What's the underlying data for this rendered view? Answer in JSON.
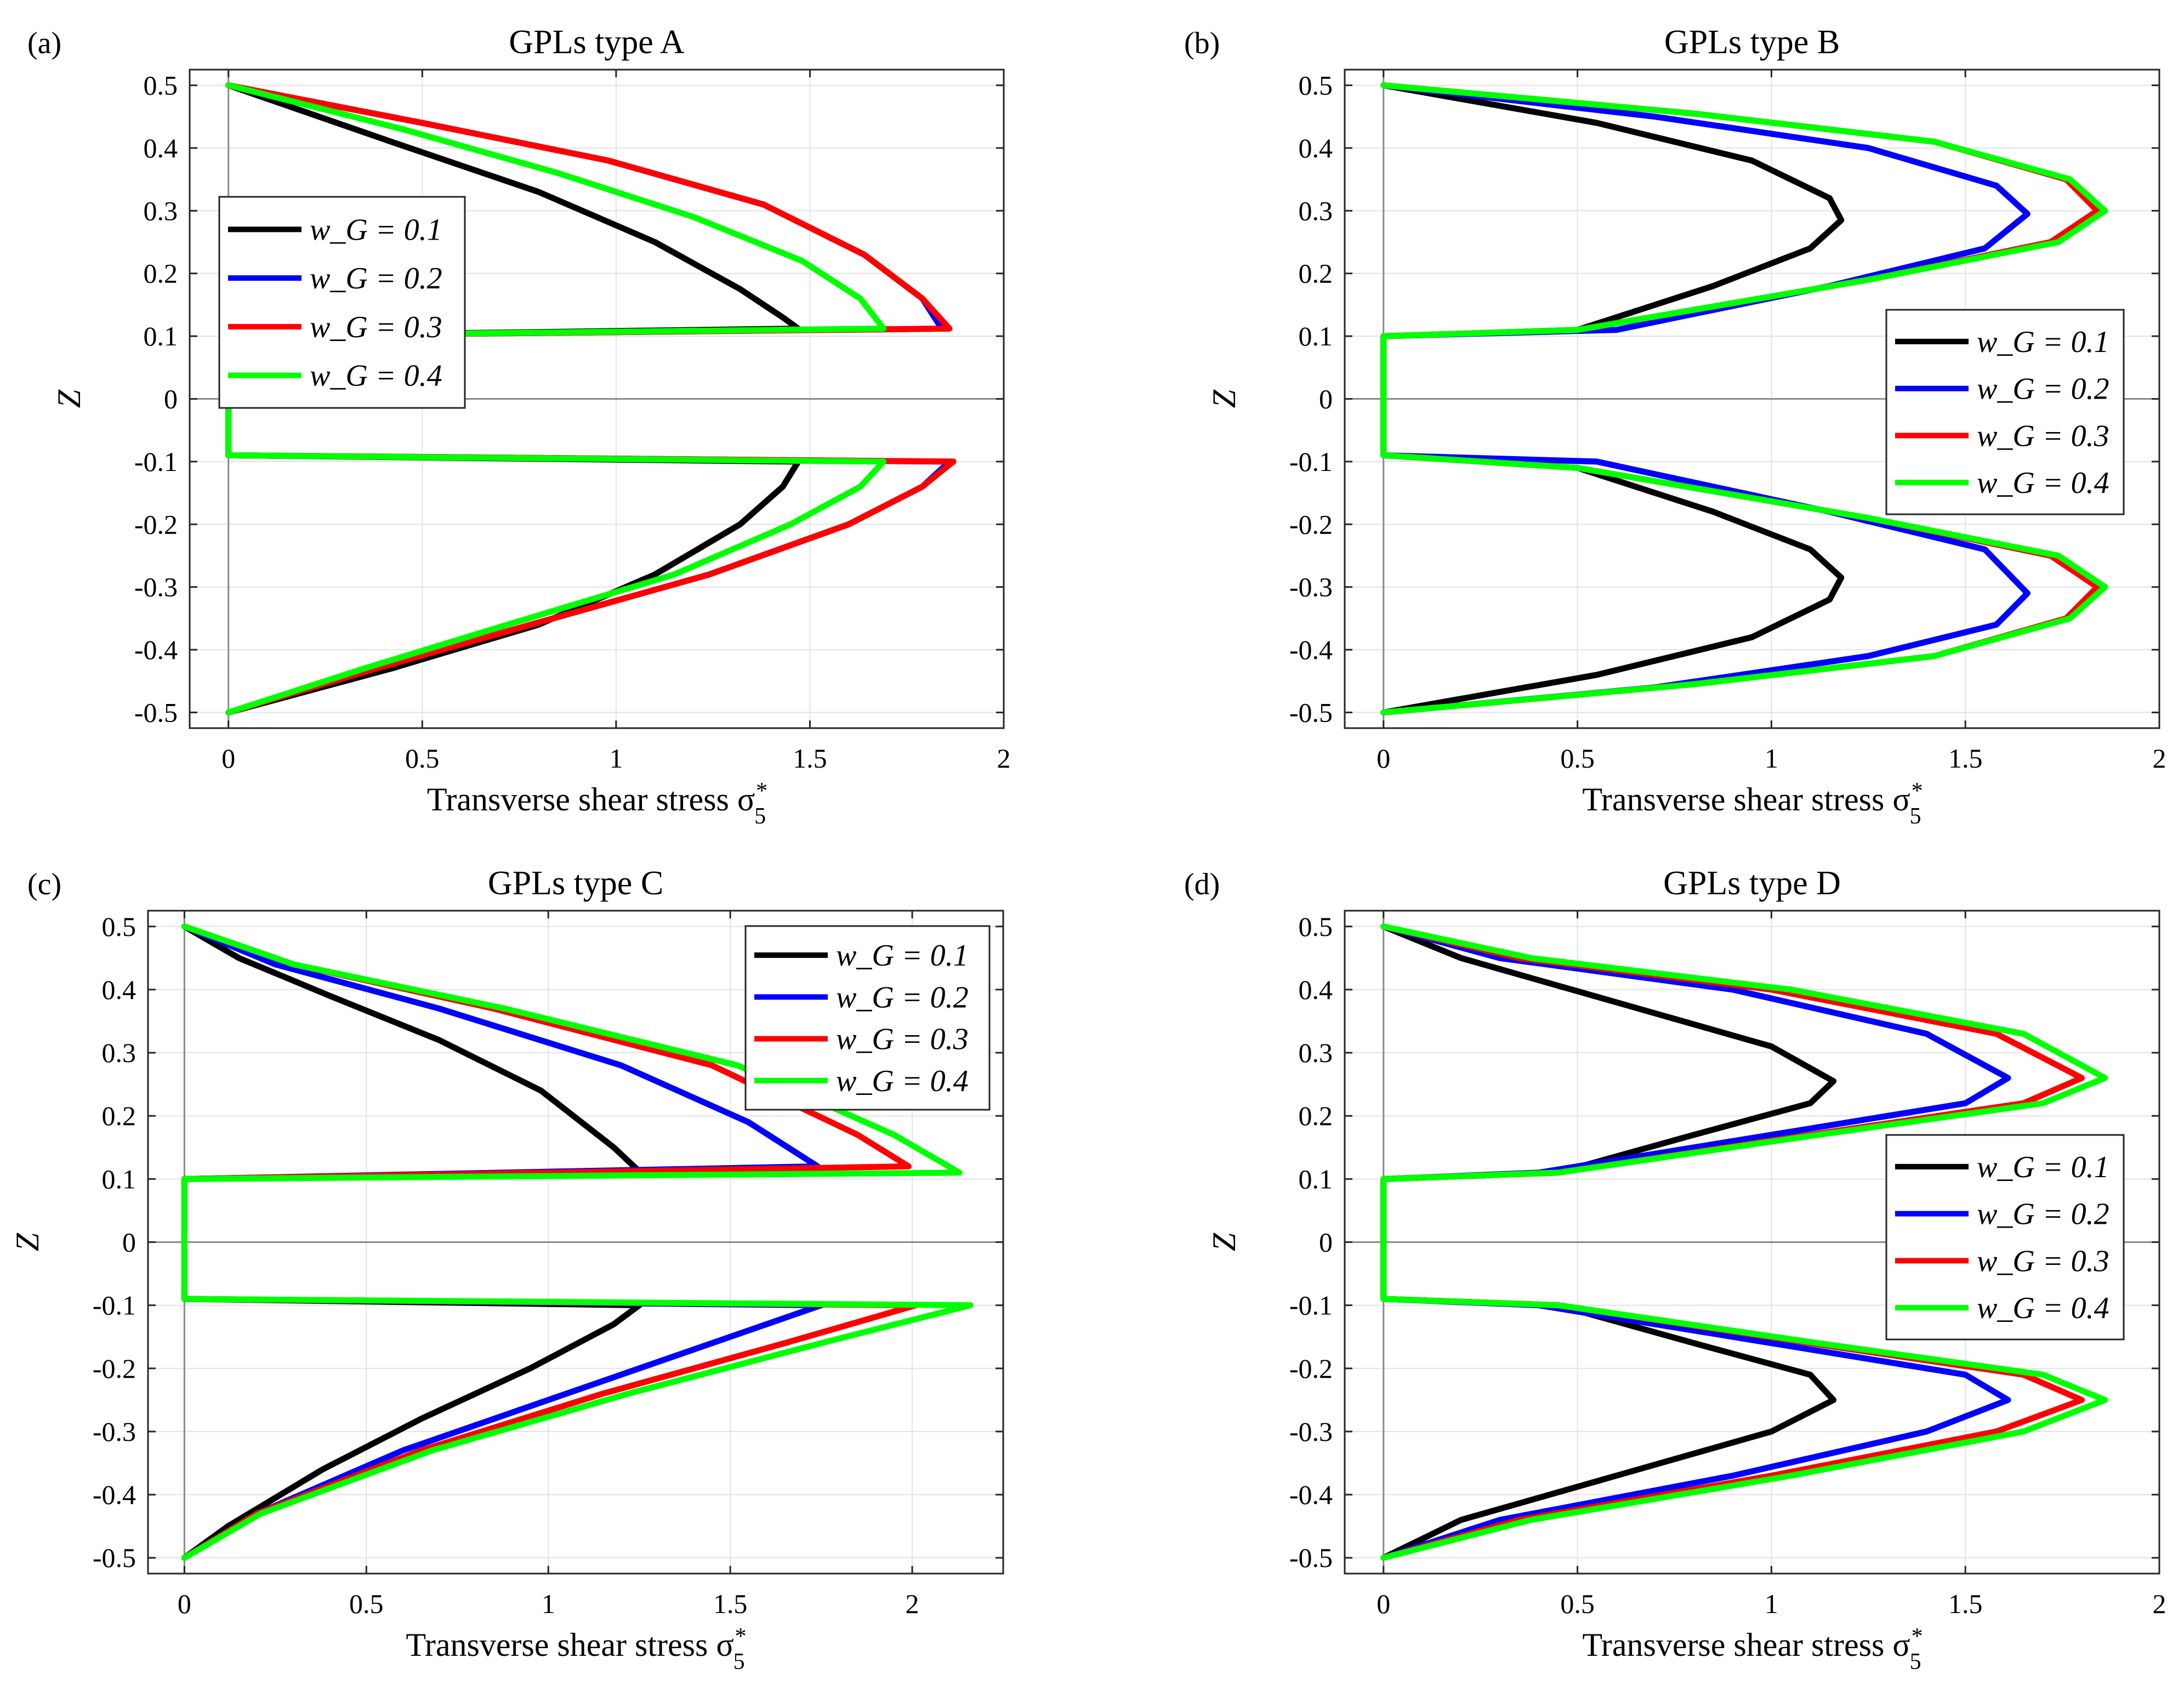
{
  "figure_size": "3984x3086",
  "colors": {
    "black": "#000000",
    "blue": "#0000ff",
    "red": "#ff0000",
    "green": "#00ff00",
    "grid": "#e3e3e3",
    "zero_line": "#8a8a8a"
  },
  "chart_data": [
    {
      "type": "line",
      "panel_label": "(a)",
      "title": "GPLs type A",
      "xlabel": "Transverse shear stress σ",
      "xlabel_sub": "5",
      "xlabel_sup": "*",
      "ylabel": "Z",
      "xlim": [
        -0.1,
        2
      ],
      "ylim": [
        -0.525,
        0.525
      ],
      "xticks": [
        0,
        0.5,
        1,
        1.5,
        2
      ],
      "xtick_labels": [
        "0",
        "0.5",
        "1",
        "1.5",
        "2"
      ],
      "yticks": [
        0.5,
        0.4,
        0.3,
        0.2,
        0.1,
        0,
        -0.1,
        -0.2,
        -0.3,
        -0.4,
        -0.5
      ],
      "ytick_labels": [
        "0.5",
        "0.4",
        "0.3",
        "0.2",
        "0.1",
        "0",
        "-0.1",
        "-0.2",
        "-0.3",
        "-0.4",
        "-0.5"
      ],
      "legend": {
        "location": "upper-left",
        "labels": [
          "w_G = 0.1",
          "w_G = 0.2",
          "w_G = 0.3",
          "w_G = 0.4"
        ]
      },
      "series": [
        {
          "name": "w_G = 0.1",
          "color": "black",
          "x": [
            0,
            0.42,
            0.8,
            1.1,
            1.32,
            1.43,
            1.47,
            0,
            0,
            1.47,
            1.43,
            1.32,
            1.1,
            0.8,
            0.42,
            0
          ],
          "z": [
            0.5,
            0.41,
            0.33,
            0.25,
            0.175,
            0.13,
            0.112,
            0.1,
            -0.09,
            -0.1,
            -0.14,
            -0.2,
            -0.28,
            -0.36,
            -0.43,
            -0.5
          ]
        },
        {
          "name": "w_G = 0.2",
          "color": "blue",
          "x": [
            0,
            0.5,
            0.98,
            1.38,
            1.64,
            1.79,
            1.84,
            0,
            0,
            1.86,
            1.79,
            1.6,
            1.24,
            0.78,
            0.38,
            0
          ],
          "z": [
            0.5,
            0.44,
            0.38,
            0.31,
            0.23,
            0.16,
            0.112,
            0.1,
            -0.09,
            -0.1,
            -0.14,
            -0.2,
            -0.28,
            -0.36,
            -0.43,
            -0.5
          ]
        },
        {
          "name": "w_G = 0.3",
          "color": "red",
          "x": [
            0,
            0.5,
            0.98,
            1.38,
            1.64,
            1.79,
            1.86,
            0,
            0,
            1.87,
            1.79,
            1.6,
            1.24,
            0.78,
            0.38,
            0
          ],
          "z": [
            0.5,
            0.44,
            0.38,
            0.31,
            0.23,
            0.16,
            0.112,
            0.1,
            -0.09,
            -0.1,
            -0.14,
            -0.2,
            -0.28,
            -0.36,
            -0.43,
            -0.5
          ]
        },
        {
          "name": "w_G = 0.4",
          "color": "green",
          "x": [
            0,
            0.45,
            0.85,
            1.2,
            1.48,
            1.63,
            1.69,
            0,
            0,
            1.69,
            1.63,
            1.45,
            1.15,
            0.72,
            0.35,
            0
          ],
          "z": [
            0.5,
            0.43,
            0.36,
            0.29,
            0.22,
            0.16,
            0.112,
            0.1,
            -0.09,
            -0.1,
            -0.14,
            -0.2,
            -0.28,
            -0.36,
            -0.43,
            -0.5
          ]
        }
      ]
    },
    {
      "type": "line",
      "panel_label": "(b)",
      "title": "GPLs type B",
      "xlabel": "Transverse shear stress σ",
      "xlabel_sub": "5",
      "xlabel_sup": "*",
      "ylabel": "Z",
      "xlim": [
        -0.1,
        2
      ],
      "ylim": [
        -0.525,
        0.525
      ],
      "xticks": [
        0,
        0.5,
        1,
        1.5,
        2
      ],
      "xtick_labels": [
        "0",
        "0.5",
        "1",
        "1.5",
        "2"
      ],
      "yticks": [
        0.5,
        0.4,
        0.3,
        0.2,
        0.1,
        0,
        -0.1,
        -0.2,
        -0.3,
        -0.4,
        -0.5
      ],
      "ytick_labels": [
        "0.5",
        "0.4",
        "0.3",
        "0.2",
        "0.1",
        "0",
        "-0.1",
        "-0.2",
        "-0.3",
        "-0.4",
        "-0.5"
      ],
      "legend": {
        "location": "right",
        "labels": [
          "w_G = 0.1",
          "w_G = 0.2",
          "w_G = 0.3",
          "w_G = 0.4"
        ]
      },
      "series": [
        {
          "name": "w_G = 0.1",
          "color": "black",
          "x": [
            0,
            0.55,
            0.95,
            1.15,
            1.18,
            1.1,
            0.85,
            0.5,
            0,
            0,
            0,
            0.5,
            0.85,
            1.1,
            1.18,
            1.15,
            0.95,
            0.55,
            0
          ],
          "z": [
            0.5,
            0.44,
            0.38,
            0.32,
            0.285,
            0.24,
            0.18,
            0.11,
            0.1,
            0,
            -0.09,
            -0.11,
            -0.18,
            -0.24,
            -0.285,
            -0.32,
            -0.38,
            -0.44,
            -0.5
          ]
        },
        {
          "name": "w_G = 0.2",
          "color": "blue",
          "x": [
            0,
            0.7,
            1.25,
            1.58,
            1.66,
            1.55,
            1.15,
            0.6,
            0,
            0,
            0,
            0.55,
            1.15,
            1.55,
            1.66,
            1.58,
            1.25,
            0.7,
            0
          ],
          "z": [
            0.5,
            0.45,
            0.4,
            0.34,
            0.295,
            0.24,
            0.18,
            0.11,
            0.1,
            0,
            -0.09,
            -0.1,
            -0.18,
            -0.24,
            -0.31,
            -0.36,
            -0.41,
            -0.46,
            -0.5
          ]
        },
        {
          "name": "w_G = 0.3",
          "color": "red",
          "x": [
            0,
            0.8,
            1.42,
            1.76,
            1.84,
            1.72,
            1.25,
            0.5,
            0,
            0,
            0,
            0.5,
            1.25,
            1.72,
            1.84,
            1.76,
            1.42,
            0.8,
            0
          ],
          "z": [
            0.5,
            0.455,
            0.41,
            0.35,
            0.3,
            0.25,
            0.19,
            0.11,
            0.1,
            0,
            -0.09,
            -0.11,
            -0.19,
            -0.25,
            -0.3,
            -0.35,
            -0.41,
            -0.455,
            -0.5
          ]
        },
        {
          "name": "w_G = 0.4",
          "color": "green",
          "x": [
            0,
            0.8,
            1.42,
            1.77,
            1.86,
            1.74,
            1.25,
            0.5,
            0,
            0,
            0,
            0.5,
            1.25,
            1.74,
            1.86,
            1.77,
            1.42,
            0.8,
            0
          ],
          "z": [
            0.5,
            0.455,
            0.41,
            0.35,
            0.3,
            0.25,
            0.19,
            0.11,
            0.1,
            0,
            -0.09,
            -0.11,
            -0.19,
            -0.25,
            -0.3,
            -0.35,
            -0.41,
            -0.455,
            -0.5
          ]
        }
      ]
    },
    {
      "type": "line",
      "panel_label": "(c)",
      "title": "GPLs type C",
      "xlabel": "Transverse shear stress σ",
      "xlabel_sub": "5",
      "xlabel_sup": "*",
      "ylabel": "Z",
      "xlim": [
        -0.1,
        2.25
      ],
      "ylim": [
        -0.525,
        0.525
      ],
      "xticks": [
        0,
        0.5,
        1,
        1.5,
        2
      ],
      "xtick_labels": [
        "0",
        "0.5",
        "1",
        "1.5",
        "2"
      ],
      "yticks": [
        0.5,
        0.4,
        0.3,
        0.2,
        0.1,
        0,
        -0.1,
        -0.2,
        -0.3,
        -0.4,
        -0.5
      ],
      "ytick_labels": [
        "0.5",
        "0.4",
        "0.3",
        "0.2",
        "0.1",
        "0",
        "-0.1",
        "-0.2",
        "-0.3",
        "-0.4",
        "-0.5"
      ],
      "legend": {
        "location": "top-right",
        "labels": [
          "w_G = 0.1",
          "w_G = 0.2",
          "w_G = 0.3",
          "w_G = 0.4"
        ]
      },
      "series": [
        {
          "name": "w_G = 0.1",
          "color": "black",
          "x": [
            0,
            0.15,
            0.4,
            0.7,
            0.98,
            1.18,
            1.25,
            0,
            0,
            1.25,
            1.18,
            0.95,
            0.65,
            0.38,
            0.12,
            0
          ],
          "z": [
            0.5,
            0.45,
            0.39,
            0.32,
            0.24,
            0.15,
            0.112,
            0.1,
            -0.09,
            -0.1,
            -0.13,
            -0.2,
            -0.28,
            -0.36,
            -0.45,
            -0.5
          ]
        },
        {
          "name": "w_G = 0.2",
          "color": "blue",
          "x": [
            0,
            0.25,
            0.7,
            1.2,
            1.55,
            1.74,
            0,
            0,
            1.75,
            1.45,
            1.05,
            0.6,
            0.2,
            0
          ],
          "z": [
            0.5,
            0.44,
            0.37,
            0.28,
            0.19,
            0.12,
            0.1,
            -0.09,
            -0.1,
            -0.16,
            -0.24,
            -0.33,
            -0.43,
            -0.5
          ]
        },
        {
          "name": "w_G = 0.3",
          "color": "red",
          "x": [
            0,
            0.3,
            0.85,
            1.45,
            1.85,
            1.99,
            0,
            0,
            2.01,
            1.65,
            1.15,
            0.65,
            0.2,
            0
          ],
          "z": [
            0.5,
            0.44,
            0.37,
            0.28,
            0.17,
            0.12,
            0.1,
            -0.09,
            -0.1,
            -0.16,
            -0.24,
            -0.33,
            -0.43,
            -0.5
          ]
        },
        {
          "name": "w_G = 0.4",
          "color": "green",
          "x": [
            0,
            0.3,
            0.88,
            1.52,
            1.95,
            2.13,
            0,
            0,
            2.16,
            1.75,
            1.22,
            0.68,
            0.21,
            0
          ],
          "z": [
            0.5,
            0.44,
            0.37,
            0.28,
            0.17,
            0.11,
            0.1,
            -0.09,
            -0.1,
            -0.16,
            -0.24,
            -0.33,
            -0.43,
            -0.5
          ]
        }
      ]
    },
    {
      "type": "line",
      "panel_label": "(d)",
      "title": "GPLs type D",
      "xlabel": "Transverse shear stress σ",
      "xlabel_sub": "5",
      "xlabel_sup": "*",
      "ylabel": "Z",
      "xlim": [
        -0.1,
        2
      ],
      "ylim": [
        -0.525,
        0.525
      ],
      "xticks": [
        0,
        0.5,
        1,
        1.5,
        2
      ],
      "xtick_labels": [
        "0",
        "0.5",
        "1",
        "1.5",
        "2"
      ],
      "yticks": [
        0.5,
        0.4,
        0.3,
        0.2,
        0.1,
        0,
        -0.1,
        -0.2,
        -0.3,
        -0.4,
        -0.5
      ],
      "ytick_labels": [
        "0.5",
        "0.4",
        "0.3",
        "0.2",
        "0.1",
        "0",
        "-0.1",
        "-0.2",
        "-0.3",
        "-0.4",
        "-0.5"
      ],
      "legend": {
        "location": "right",
        "labels": [
          "w_G = 0.1",
          "w_G = 0.2",
          "w_G = 0.3",
          "w_G = 0.4"
        ]
      },
      "series": [
        {
          "name": "w_G = 0.1",
          "color": "black",
          "x": [
            0,
            0.2,
            0.6,
            1.0,
            1.16,
            1.1,
            0.8,
            0.45,
            0,
            0,
            0,
            0.45,
            0.8,
            1.1,
            1.16,
            1.0,
            0.6,
            0.2,
            0
          ],
          "z": [
            0.5,
            0.45,
            0.38,
            0.31,
            0.255,
            0.22,
            0.17,
            0.11,
            0.1,
            0,
            -0.09,
            -0.1,
            -0.16,
            -0.21,
            -0.25,
            -0.3,
            -0.37,
            -0.44,
            -0.5
          ]
        },
        {
          "name": "w_G = 0.2",
          "color": "blue",
          "x": [
            0,
            0.3,
            0.9,
            1.4,
            1.61,
            1.5,
            1.0,
            0.4,
            0,
            0,
            0,
            0.4,
            1.0,
            1.5,
            1.61,
            1.4,
            0.9,
            0.3,
            0
          ],
          "z": [
            0.5,
            0.45,
            0.4,
            0.33,
            0.26,
            0.22,
            0.17,
            0.11,
            0.1,
            0,
            -0.09,
            -0.1,
            -0.16,
            -0.21,
            -0.25,
            -0.3,
            -0.37,
            -0.44,
            -0.5
          ]
        },
        {
          "name": "w_G = 0.3",
          "color": "red",
          "x": [
            0,
            0.35,
            1.0,
            1.58,
            1.8,
            1.65,
            1.1,
            0.45,
            0,
            0,
            0,
            0.45,
            1.1,
            1.65,
            1.8,
            1.58,
            1.0,
            0.35,
            0
          ],
          "z": [
            0.5,
            0.45,
            0.4,
            0.33,
            0.26,
            0.22,
            0.17,
            0.11,
            0.1,
            0,
            -0.09,
            -0.1,
            -0.16,
            -0.21,
            -0.25,
            -0.3,
            -0.37,
            -0.44,
            -0.5
          ]
        },
        {
          "name": "w_G = 0.4",
          "color": "green",
          "x": [
            0,
            0.38,
            1.05,
            1.65,
            1.86,
            1.7,
            1.12,
            0.45,
            0,
            0,
            0,
            0.45,
            1.12,
            1.7,
            1.86,
            1.65,
            1.05,
            0.38,
            0
          ],
          "z": [
            0.5,
            0.45,
            0.4,
            0.33,
            0.26,
            0.22,
            0.17,
            0.11,
            0.1,
            0,
            -0.09,
            -0.1,
            -0.16,
            -0.21,
            -0.25,
            -0.3,
            -0.37,
            -0.44,
            -0.5
          ]
        }
      ]
    }
  ]
}
